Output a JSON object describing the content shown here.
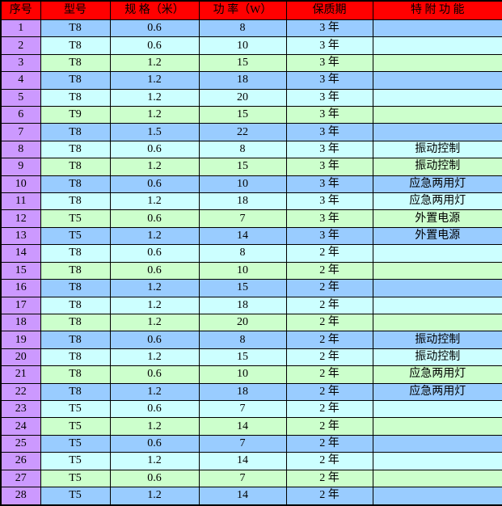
{
  "table": {
    "headers": [
      "序号",
      "型号",
      "规 格（米）",
      "功 率（W）",
      "保质期",
      "特 附 功 能"
    ],
    "rows": [
      {
        "no": "1",
        "model": "T8",
        "spec": "0.6",
        "power": "8",
        "warranty": "3 年",
        "feature": ""
      },
      {
        "no": "2",
        "model": "T8",
        "spec": "0.6",
        "power": "10",
        "warranty": "3 年",
        "feature": ""
      },
      {
        "no": "3",
        "model": "T8",
        "spec": "1.2",
        "power": "15",
        "warranty": "3 年",
        "feature": ""
      },
      {
        "no": "4",
        "model": "T8",
        "spec": "1.2",
        "power": "18",
        "warranty": "3 年",
        "feature": ""
      },
      {
        "no": "5",
        "model": "T8",
        "spec": "1.2",
        "power": "20",
        "warranty": "3 年",
        "feature": ""
      },
      {
        "no": "6",
        "model": "T9",
        "spec": "1.2",
        "power": "15",
        "warranty": "3 年",
        "feature": ""
      },
      {
        "no": "7",
        "model": "T8",
        "spec": "1.5",
        "power": "22",
        "warranty": "3 年",
        "feature": ""
      },
      {
        "no": "8",
        "model": "T8",
        "spec": "0.6",
        "power": "8",
        "warranty": "3 年",
        "feature": "振动控制"
      },
      {
        "no": "9",
        "model": "T8",
        "spec": "1.2",
        "power": "15",
        "warranty": "3 年",
        "feature": "振动控制"
      },
      {
        "no": "10",
        "model": "T8",
        "spec": "0.6",
        "power": "10",
        "warranty": "3 年",
        "feature": "应急两用灯"
      },
      {
        "no": "11",
        "model": "T8",
        "spec": "1.2",
        "power": "18",
        "warranty": "3 年",
        "feature": "应急两用灯"
      },
      {
        "no": "12",
        "model": "T5",
        "spec": "0.6",
        "power": "7",
        "warranty": "3 年",
        "feature": "外置电源"
      },
      {
        "no": "13",
        "model": "T5",
        "spec": "1.2",
        "power": "14",
        "warranty": "3 年",
        "feature": "外置电源"
      },
      {
        "no": "14",
        "model": "T8",
        "spec": "0.6",
        "power": "8",
        "warranty": "2 年",
        "feature": ""
      },
      {
        "no": "15",
        "model": "T8",
        "spec": "0.6",
        "power": "10",
        "warranty": "2 年",
        "feature": ""
      },
      {
        "no": "16",
        "model": "T8",
        "spec": "1.2",
        "power": "15",
        "warranty": "2 年",
        "feature": ""
      },
      {
        "no": "17",
        "model": "T8",
        "spec": "1.2",
        "power": "18",
        "warranty": "2 年",
        "feature": ""
      },
      {
        "no": "18",
        "model": "T8",
        "spec": "1.2",
        "power": "20",
        "warranty": "2 年",
        "feature": ""
      },
      {
        "no": "19",
        "model": "T8",
        "spec": "0.6",
        "power": "8",
        "warranty": "2 年",
        "feature": "振动控制"
      },
      {
        "no": "20",
        "model": "T8",
        "spec": "1.2",
        "power": "15",
        "warranty": "2 年",
        "feature": "振动控制"
      },
      {
        "no": "21",
        "model": "T8",
        "spec": "0.6",
        "power": "10",
        "warranty": "2 年",
        "feature": "应急两用灯"
      },
      {
        "no": "22",
        "model": "T8",
        "spec": "1.2",
        "power": "18",
        "warranty": "2 年",
        "feature": "应急两用灯"
      },
      {
        "no": "23",
        "model": "T5",
        "spec": "0.6",
        "power": "7",
        "warranty": "2 年",
        "feature": ""
      },
      {
        "no": "24",
        "model": "T5",
        "spec": "1.2",
        "power": "14",
        "warranty": "2 年",
        "feature": ""
      },
      {
        "no": "25",
        "model": "T5",
        "spec": "0.6",
        "power": "7",
        "warranty": "2 年",
        "feature": ""
      },
      {
        "no": "26",
        "model": "T5",
        "spec": "1.2",
        "power": "14",
        "warranty": "2 年",
        "feature": ""
      },
      {
        "no": "27",
        "model": "T5",
        "spec": "0.6",
        "power": "7",
        "warranty": "2 年",
        "feature": ""
      },
      {
        "no": "28",
        "model": "T5",
        "spec": "1.2",
        "power": "14",
        "warranty": "2 年",
        "feature": ""
      }
    ],
    "colors": {
      "header_bg": "#FF0000",
      "index_col_bg": "#CC99FF",
      "row_cycle": [
        "#99CCFF",
        "#CCFFFF",
        "#CCFFCC"
      ],
      "border": "#000000",
      "text": "#000000"
    }
  }
}
